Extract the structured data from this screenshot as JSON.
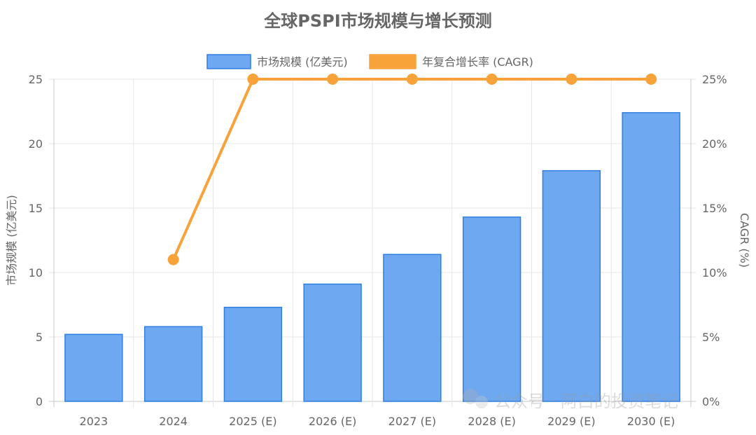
{
  "chart_data": {
    "type": "bar",
    "title": "全球PSPI市场规模与增长预测",
    "categories": [
      "2023",
      "2024",
      "2025 (E)",
      "2026 (E)",
      "2027 (E)",
      "2028 (E)",
      "2029 (E)",
      "2030 (E)"
    ],
    "series": [
      {
        "name": "市场规模 (亿美元)",
        "type": "bar",
        "axis": "left",
        "color": "#6ea8f0",
        "border_color": "#2f7fe0",
        "values": [
          5.2,
          5.8,
          7.3,
          9.1,
          11.4,
          14.3,
          17.9,
          22.4
        ]
      },
      {
        "name": "年复合增长率 (CAGR)",
        "type": "line",
        "axis": "right",
        "color": "#f8a23a",
        "values": [
          null,
          11,
          25,
          25,
          25,
          25,
          25,
          25
        ]
      }
    ],
    "y_left": {
      "label": "市场规模 (亿美元)",
      "range": [
        0,
        25
      ],
      "ticks": [
        "0",
        "5",
        "10",
        "15",
        "20",
        "25"
      ]
    },
    "y_right": {
      "label": "CAGR (%)",
      "range": [
        0,
        25
      ],
      "ticks": [
        "0%",
        "5%",
        "10%",
        "15%",
        "20%",
        "25%"
      ]
    },
    "grid": true,
    "legend_position": "top-center"
  },
  "watermark": "公众号 · 阿白的投资笔记"
}
